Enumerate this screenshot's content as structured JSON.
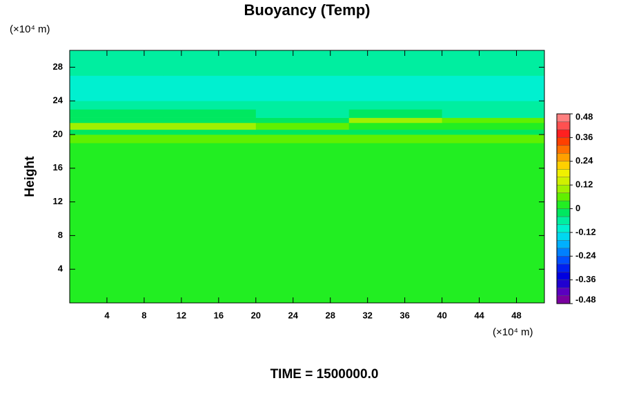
{
  "chart_data": {
    "type": "heatmap",
    "title": "Buoyancy (Temp)",
    "y_label": "Height",
    "x_unit": "(×10⁴ m)",
    "y_unit": "(×10⁴ m)",
    "footer": "TIME = 1500000.0",
    "xlim": [
      0,
      51
    ],
    "ylim": [
      0,
      30
    ],
    "xticks": [
      4,
      8,
      12,
      16,
      20,
      24,
      28,
      32,
      36,
      40,
      44,
      48
    ],
    "yticks": [
      4,
      8,
      12,
      16,
      20,
      24,
      28
    ],
    "x_edges": [
      0,
      10,
      20,
      30,
      40,
      51
    ],
    "y_edges": [
      0,
      11,
      15,
      19,
      20,
      20.6,
      21.4,
      22,
      23,
      24,
      27,
      30
    ],
    "z": [
      [
        0,
        0,
        0,
        0,
        0
      ],
      [
        0.03,
        0.03,
        0.03,
        0.02,
        0.02
      ],
      [
        0.02,
        0.02,
        0.02,
        0.02,
        0.02
      ],
      [
        0.05,
        0.05,
        0.05,
        0.06,
        0.05
      ],
      [
        -0.04,
        -0.04,
        -0.03,
        -0.04,
        -0.04
      ],
      [
        0.1,
        0.1,
        0.08,
        0.02,
        0.01
      ],
      [
        -0.03,
        -0.03,
        -0.02,
        0.09,
        0.08
      ],
      [
        -0.04,
        -0.04,
        -0.05,
        -0.04,
        -0.05
      ],
      [
        -0.06,
        -0.06,
        -0.07,
        -0.08,
        -0.08
      ],
      [
        -0.11,
        -0.1,
        -0.09,
        -0.09,
        -0.1
      ],
      [
        -0.06,
        -0.06,
        -0.06,
        -0.06,
        -0.06
      ]
    ],
    "clim": [
      -0.48,
      0.48
    ],
    "cticks": [
      0.48,
      0.36,
      0.24,
      0.12,
      0,
      -0.12,
      -0.24,
      -0.36,
      -0.48
    ],
    "colors": [
      "#7a00a0",
      "#5a00c0",
      "#2000d0",
      "#0000e0",
      "#0020f0",
      "#0050ff",
      "#0080ff",
      "#00b0ff",
      "#00d8f0",
      "#00f0d0",
      "#00eea0",
      "#00e860",
      "#22ee22",
      "#60f000",
      "#a0f000",
      "#d0f000",
      "#f0f000",
      "#ffd000",
      "#ffa000",
      "#ff7000",
      "#ff4000",
      "#ff2020",
      "#ff5050",
      "#ff8080"
    ]
  }
}
